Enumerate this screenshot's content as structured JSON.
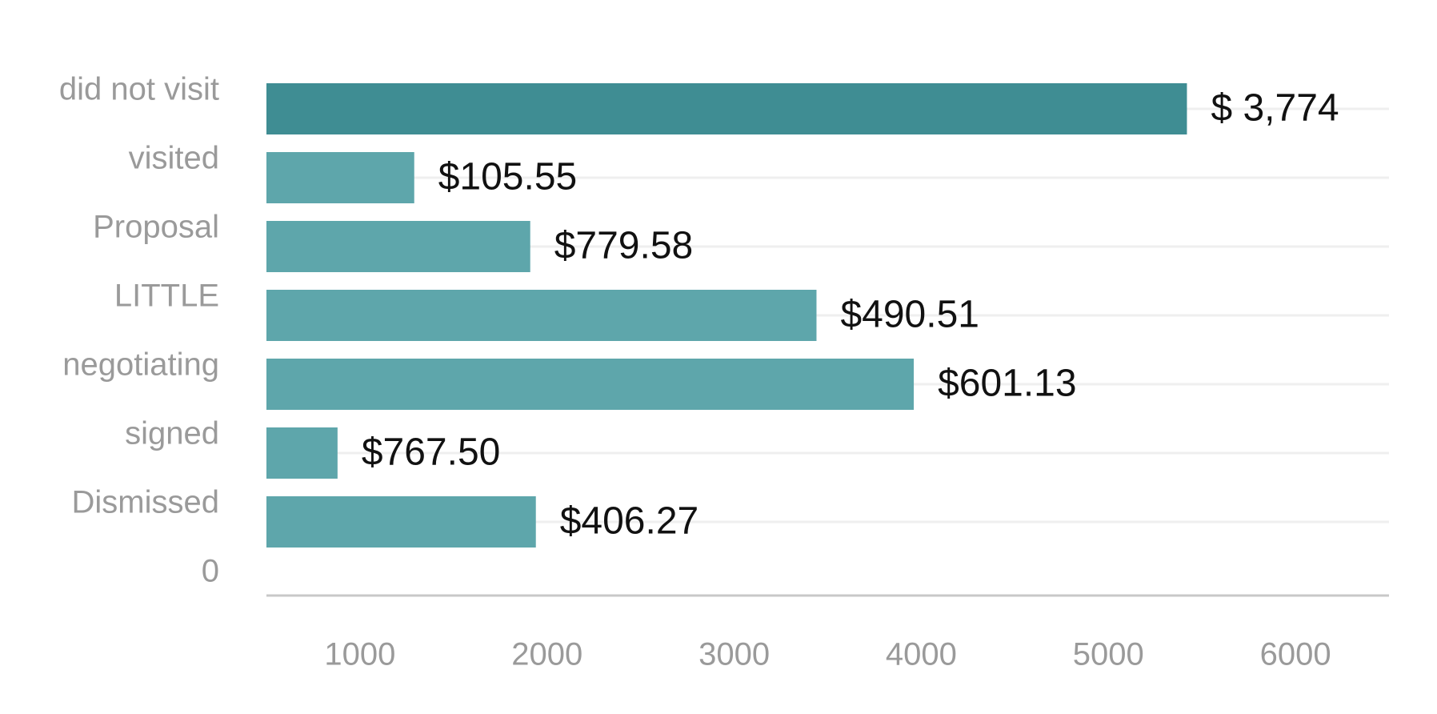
{
  "chart_data": {
    "type": "bar",
    "orientation": "horizontal",
    "title": "",
    "xlabel": "",
    "ylabel": "",
    "categories": [
      "did not visit",
      "visited",
      "Proposal",
      "LITTLE",
      "negotiating",
      "signed",
      "Dismissed",
      "0"
    ],
    "values": [
      5420,
      1290,
      1910,
      3440,
      3960,
      880,
      1940,
      null
    ],
    "data_labels": [
      "$ 3,774",
      "$105.55",
      "$779.58",
      "$490.51",
      "$601.13",
      "$767.50",
      "$406.27",
      ""
    ],
    "xlim": [
      500,
      6500
    ],
    "xticks": [
      1000,
      2000,
      3000,
      4000,
      5000,
      6000
    ],
    "xtick_labels": [
      "1000",
      "2000",
      "3000",
      "4000",
      "5000",
      "6000"
    ],
    "grid": true,
    "legend": "none",
    "colors": {
      "highlight_bar": "#3f8d93",
      "bar": "#5ea6ab",
      "gridline": "#efefef",
      "axis_line": "#c8c8c8",
      "tick_text": "#9a9a9a",
      "label_text": "#111111"
    },
    "highlight_index": 0
  }
}
